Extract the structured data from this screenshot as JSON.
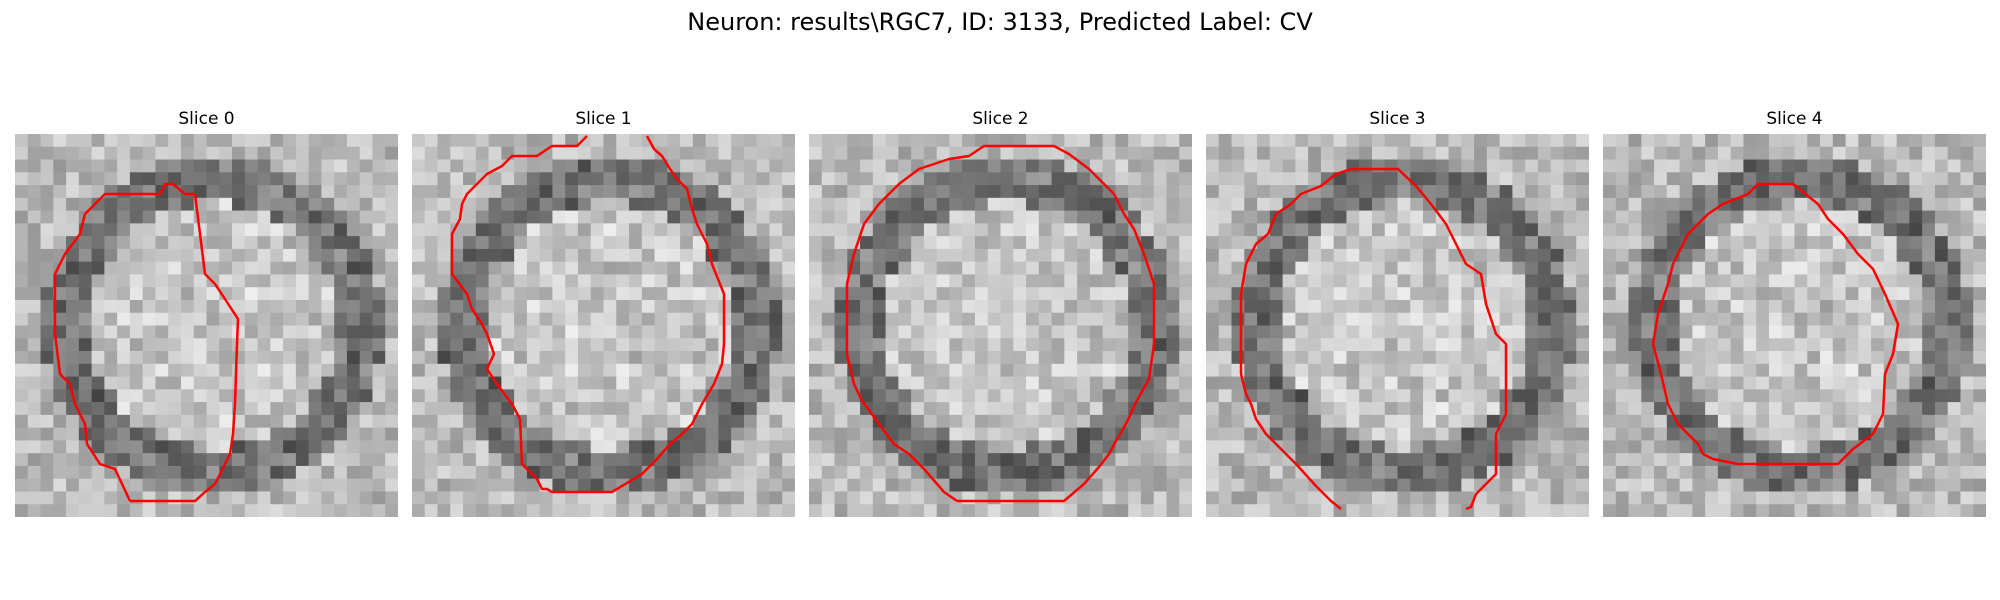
{
  "figure": {
    "title": "Neuron: results\\RGC7, ID: 3133, Predicted Label: CV",
    "contour_color": "#ff0000"
  },
  "slices": [
    {
      "title": "Slice 0"
    },
    {
      "title": "Slice 1"
    },
    {
      "title": "Slice 2"
    },
    {
      "title": "Slice 3"
    },
    {
      "title": "Slice 4"
    }
  ]
}
